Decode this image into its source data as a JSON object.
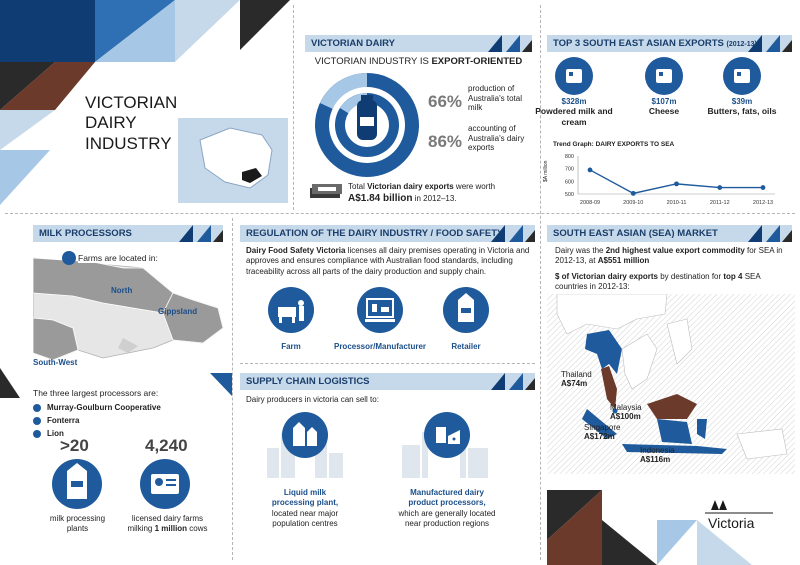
{
  "title": "VICTORIAN DAIRY INDUSTRY",
  "victorian_dairy": {
    "header": "VICTORIAN DAIRY",
    "tagline_prefix": "VICTORIAN INDUSTRY IS ",
    "tagline_bold": "EXPORT-ORIENTED",
    "stat1_value": "66%",
    "stat1_text": "production of Australia's total milk",
    "stat2_value": "86%",
    "stat2_text": "accounting of Australia's dairy exports",
    "exports_text_prefix": "Total ",
    "exports_text_bold": "Victorian dairy exports",
    "exports_text_suffix": " were worth",
    "exports_value": "A$1.84 billion",
    "exports_period": " in 2012–13."
  },
  "top_exports": {
    "header": "TOP 3 SOUTH EAST ASIAN EXPORTS",
    "header_sub": "(2012-13)",
    "items": [
      {
        "value": "$328m",
        "label": "Powdered milk and cream",
        "icon": "powdered-milk-icon"
      },
      {
        "value": "$107m",
        "label": "Cheese",
        "icon": "cheese-icon"
      },
      {
        "value": "$39m",
        "label": "Butters, fats, oils",
        "icon": "butter-icon"
      }
    ]
  },
  "chart_data": {
    "type": "line",
    "title": "Trend Graph: DAIRY EXPORTS TO SEA",
    "ylabel": "$A million",
    "categories": [
      "2008-09",
      "2009-10",
      "2010-11",
      "2011-12",
      "2012-13"
    ],
    "values": [
      690,
      505,
      580,
      551,
      551
    ],
    "ylim": [
      500,
      800
    ],
    "yticks": [
      "800",
      "700",
      "600",
      "500"
    ],
    "line_color": "#1e5a9c"
  },
  "milk_processors": {
    "header": "MILK PROCESSORS",
    "farms_text": "Farms are located in:",
    "regions": [
      "North",
      "Gippsland",
      "South-West"
    ],
    "largest_text": "The three largest processors are:",
    "processors": [
      "Murray-Goulburn Cooperative",
      "Fonterra",
      "Lion"
    ],
    "stat1_value": ">20",
    "stat1_label": "milk processing plants",
    "stat2_value": "4,240",
    "stat2_label_prefix": "licensed dairy farms milking ",
    "stat2_label_bold": "1 million",
    "stat2_label_suffix": " cows"
  },
  "regulation": {
    "header": "REGULATION OF THE DAIRY INDUSTRY / FOOD SAFETY",
    "body_bold": "Dairy Food Safety Victoria",
    "body": " licenses all dairy premises operating in Victoria and approves and ensures compliance with Australian food standards, including traceability across all parts of the dairy production and supply chain.",
    "items": [
      "Farm",
      "Processor/Manufacturer",
      "Retailer"
    ]
  },
  "supply_chain": {
    "header": "SUPPLY CHAIN LOGISTICS",
    "intro": "Dairy producers in victoria can sell to:",
    "item1_bold": "Liquid milk processing plant,",
    "item1_text": "located near major population centres",
    "item2_bold": "Manufactured dairy product processors,",
    "item2_text": "which are generally located near production regions"
  },
  "sea_market": {
    "header": "SOUTH EAST ASIAN (SEA) MARKET",
    "text1_prefix": "Dairy was the ",
    "text1_bold": "2nd highest value export commodity",
    "text1_mid": " for SEA in 2012-13, at ",
    "text1_value": "A$551 million",
    "text2_bold1": "$ of Victorian dairy exports",
    "text2_mid": " by destination for ",
    "text2_bold2": "top 4",
    "text2_suffix": " SEA countries in 2012-13:",
    "countries": [
      {
        "name": "Thailand",
        "value": "A$74m"
      },
      {
        "name": "Malaysia",
        "value": "A$100m"
      },
      {
        "name": "Singapore",
        "value": "A$172m"
      },
      {
        "name": "Indonesia",
        "value": "A$116m"
      }
    ]
  },
  "footer_logo": "Victoria",
  "colors": {
    "navy": "#1e5a9c",
    "light_blue": "#c6d9ea",
    "dark_grey": "#3a3a3a",
    "brown": "#6b3a2a"
  }
}
